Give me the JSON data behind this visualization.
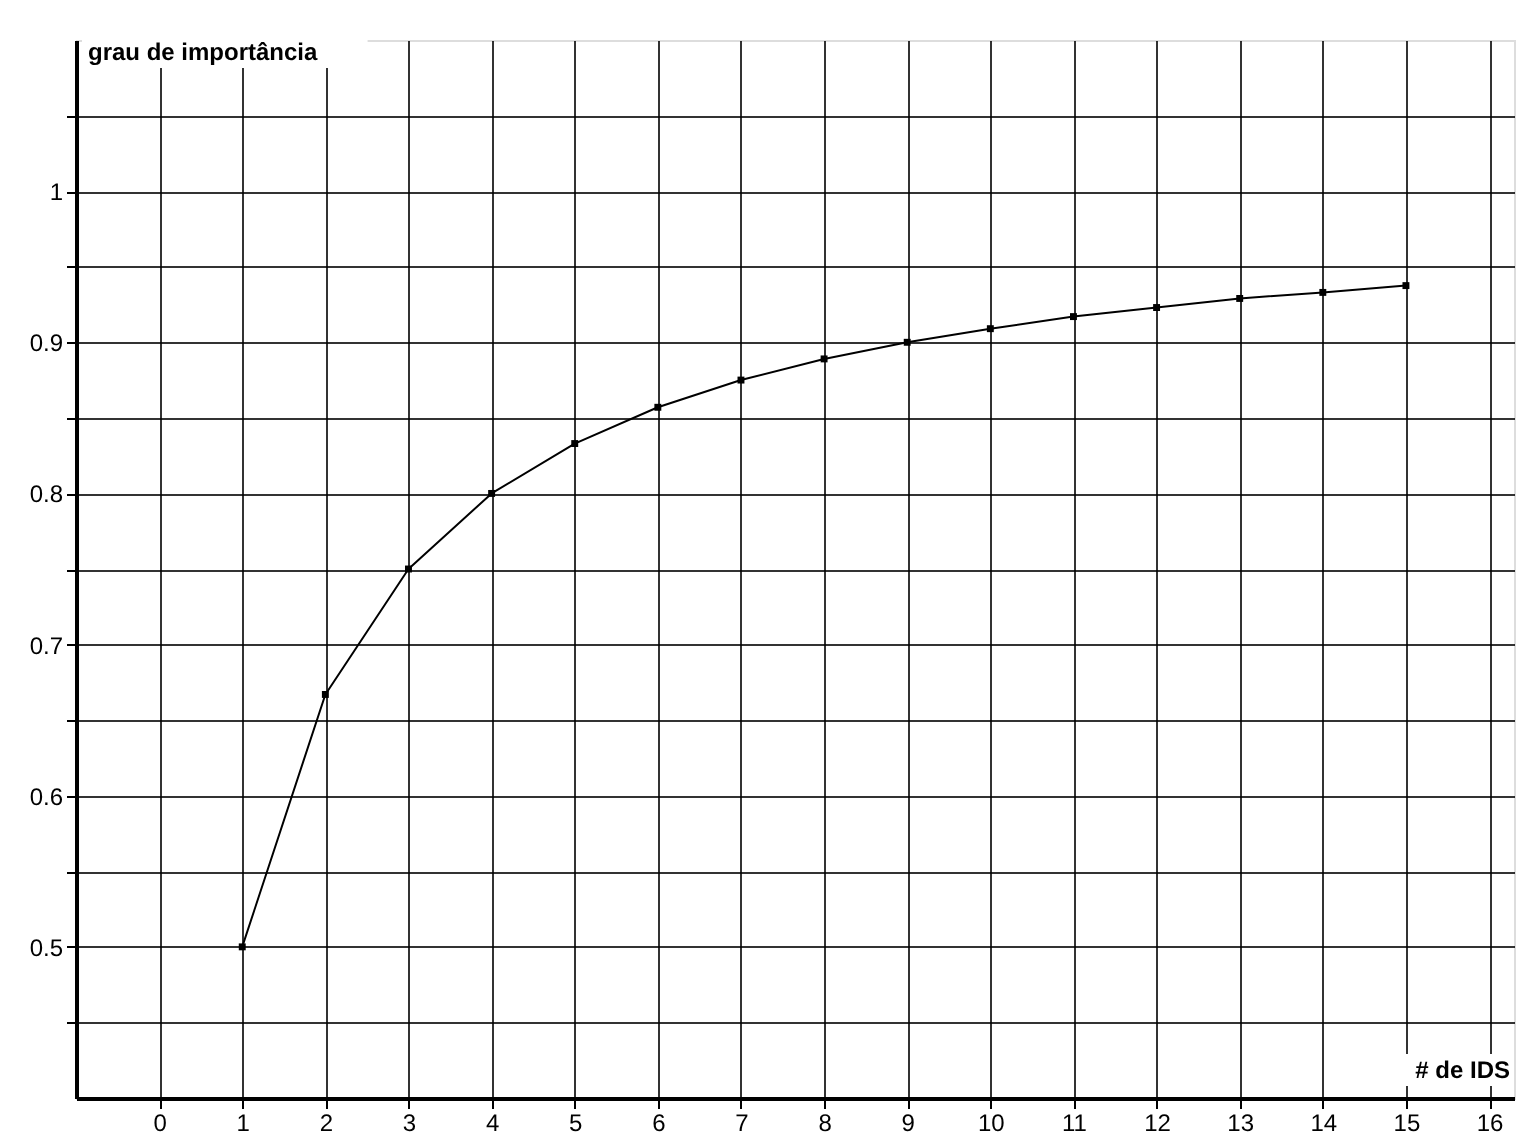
{
  "chart_data": {
    "type": "line",
    "xlabel": "# de IDS",
    "ylabel": "grau de importância",
    "x": [
      1,
      2,
      3,
      4,
      5,
      6,
      7,
      8,
      9,
      10,
      11,
      12,
      13,
      14,
      15
    ],
    "series": [
      {
        "color": "#000000",
        "values": [
          0.5,
          0.667,
          0.75,
          0.8,
          0.833,
          0.857,
          0.875,
          0.889,
          0.9,
          0.909,
          0.917,
          0.923,
          0.929,
          0.933,
          0.9375
        ]
      }
    ],
    "xlim": [
      -1,
      16.3
    ],
    "ylim": [
      0.4,
      1.1
    ],
    "xticks": [
      0,
      1,
      2,
      3,
      4,
      5,
      6,
      7,
      8,
      9,
      10,
      11,
      12,
      13,
      14,
      15,
      16
    ],
    "yticks": [
      {
        "value": 0.45,
        "label": null
      },
      0.5,
      {
        "value": 0.55,
        "label": null
      },
      0.6,
      {
        "value": 0.65,
        "label": null
      },
      0.7,
      {
        "value": 0.75,
        "label": null
      },
      0.8,
      {
        "value": 0.85,
        "label": null
      },
      0.9,
      {
        "value": 0.95,
        "label": null
      },
      1,
      {
        "value": 1.05,
        "label": null
      }
    ],
    "grid": true,
    "marker": "square",
    "line_style": "solid"
  }
}
